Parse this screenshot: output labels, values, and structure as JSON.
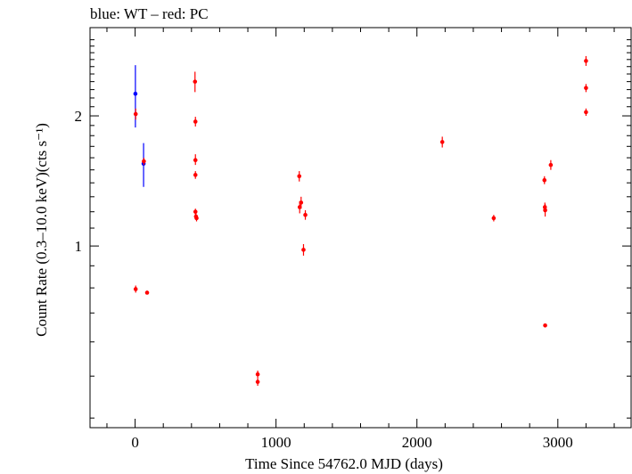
{
  "chart_data": {
    "type": "scatter",
    "title": "blue: WT – red: PC",
    "xlabel": "Time Since 54762.0 MJD (days)",
    "ylabel": "Count Rate (0.3–10.0 keV)(cts s⁻¹)",
    "y_scale": "log",
    "xlim": [
      -320,
      3520
    ],
    "ylim": [
      0.38,
      3.2
    ],
    "x_ticks": [
      0,
      1000,
      2000,
      3000
    ],
    "x_tick_labels": [
      "0",
      "1000",
      "2000",
      "3000"
    ],
    "y_ticks": [
      1,
      2
    ],
    "y_tick_labels": [
      "1",
      "2"
    ],
    "grid": false,
    "series": [
      {
        "color": "#0000ff",
        "points": [
          {
            "x": 2,
            "y": 2.25,
            "ylo": 1.88,
            "yhi": 2.62
          },
          {
            "x": 60,
            "y": 1.55,
            "ylo": 1.37,
            "yhi": 1.73
          }
        ]
      },
      {
        "color": "#ff0000",
        "points": [
          {
            "x": 4,
            "y": 2.02,
            "ylo": 1.96,
            "yhi": 2.08
          },
          {
            "x": 4,
            "y": 0.795,
            "ylo": 0.78,
            "yhi": 0.81
          },
          {
            "x": 62,
            "y": 1.57,
            "ylo": 1.54,
            "yhi": 1.6
          },
          {
            "x": 85,
            "y": 0.78,
            "ylo": 0.775,
            "yhi": 0.785
          },
          {
            "x": 425,
            "y": 2.4,
            "ylo": 2.27,
            "yhi": 2.53
          },
          {
            "x": 428,
            "y": 1.94,
            "ylo": 1.89,
            "yhi": 1.99
          },
          {
            "x": 428,
            "y": 1.58,
            "ylo": 1.54,
            "yhi": 1.63
          },
          {
            "x": 428,
            "y": 1.46,
            "ylo": 1.43,
            "yhi": 1.49
          },
          {
            "x": 428,
            "y": 1.2,
            "ylo": 1.18,
            "yhi": 1.22
          },
          {
            "x": 432,
            "y": 1.17,
            "ylo": 1.15,
            "yhi": 1.19
          },
          {
            "x": 436,
            "y": 1.16,
            "ylo": 1.14,
            "yhi": 1.18
          },
          {
            "x": 870,
            "y": 0.505,
            "ylo": 0.495,
            "yhi": 0.515
          },
          {
            "x": 870,
            "y": 0.485,
            "ylo": 0.475,
            "yhi": 0.495
          },
          {
            "x": 1165,
            "y": 1.45,
            "ylo": 1.41,
            "yhi": 1.49
          },
          {
            "x": 1168,
            "y": 1.23,
            "ylo": 1.19,
            "yhi": 1.27
          },
          {
            "x": 1178,
            "y": 1.26,
            "ylo": 1.22,
            "yhi": 1.3
          },
          {
            "x": 1195,
            "y": 0.98,
            "ylo": 0.95,
            "yhi": 1.01
          },
          {
            "x": 1208,
            "y": 1.18,
            "ylo": 1.15,
            "yhi": 1.21
          },
          {
            "x": 2180,
            "y": 1.74,
            "ylo": 1.69,
            "yhi": 1.79
          },
          {
            "x": 2545,
            "y": 1.16,
            "ylo": 1.14,
            "yhi": 1.18
          },
          {
            "x": 2905,
            "y": 1.42,
            "ylo": 1.39,
            "yhi": 1.45
          },
          {
            "x": 2908,
            "y": 1.23,
            "ylo": 1.2,
            "yhi": 1.26
          },
          {
            "x": 2910,
            "y": 1.21,
            "ylo": 1.17,
            "yhi": 1.25
          },
          {
            "x": 2910,
            "y": 0.655,
            "ylo": 0.65,
            "yhi": 0.66
          },
          {
            "x": 2950,
            "y": 1.54,
            "ylo": 1.5,
            "yhi": 1.58
          },
          {
            "x": 3200,
            "y": 2.68,
            "ylo": 2.61,
            "yhi": 2.75
          },
          {
            "x": 3200,
            "y": 2.32,
            "ylo": 2.27,
            "yhi": 2.37
          },
          {
            "x": 3200,
            "y": 2.04,
            "ylo": 2.0,
            "yhi": 2.08
          }
        ]
      }
    ]
  }
}
